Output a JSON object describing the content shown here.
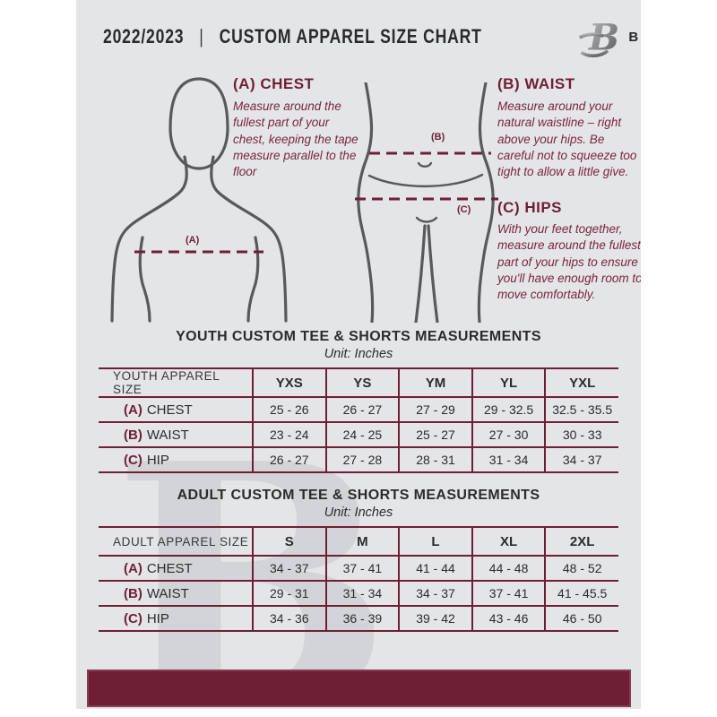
{
  "header": {
    "title_year": "2022/2023",
    "title_divider": "|",
    "title_main": "CUSTOM APPAREL SIZE CHART",
    "brand": "BREAKAWAY",
    "logo_letter": "B"
  },
  "instructions": {
    "chest": {
      "heading": "(A) CHEST",
      "text": "Measure around the fullest part of your chest, keeping the tape measure parallel to the floor"
    },
    "waist": {
      "heading": "(B) WAIST",
      "text": "Measure around your natural waistline – right above your hips. Be careful not to squeeze too tight to allow a little give."
    },
    "hips": {
      "heading": "(C) HIPS",
      "text": "With your feet together, measure around the fullest part of your hips to ensure you'll have enough room to move comfortably."
    }
  },
  "figure_labels": {
    "chest": "(A)",
    "waist": "(B)",
    "hips": "(C)"
  },
  "youth": {
    "title": "YOUTH CUSTOM TEE & SHORTS MEASUREMENTS",
    "unit": "Unit: Inches",
    "size_label": "YOUTH APPAREL SIZE",
    "sizes": [
      "YXS",
      "YS",
      "YM",
      "YL",
      "YXL"
    ],
    "rows": [
      {
        "prefix": "(A)",
        "label": "CHEST",
        "values": [
          "25 - 26",
          "26 - 27",
          "27 - 29",
          "29 - 32.5",
          "32.5 - 35.5"
        ]
      },
      {
        "prefix": "(B)",
        "label": "WAIST",
        "values": [
          "23 - 24",
          "24 - 25",
          "25 - 27",
          "27 - 30",
          "30 - 33"
        ]
      },
      {
        "prefix": "(C)",
        "label": "HIP",
        "values": [
          "26 - 27",
          "27 - 28",
          "28 - 31",
          "31 - 34",
          "34 - 37"
        ]
      }
    ]
  },
  "adult": {
    "title": "ADULT CUSTOM TEE & SHORTS MEASUREMENTS",
    "unit": "Unit: Inches",
    "size_label": "ADULT APPAREL SIZE",
    "sizes": [
      "S",
      "M",
      "L",
      "XL",
      "2XL"
    ],
    "rows": [
      {
        "prefix": "(A)",
        "label": "CHEST",
        "values": [
          "34 - 37",
          "37 - 41",
          "41 - 44",
          "44 - 48",
          "48 - 52"
        ]
      },
      {
        "prefix": "(B)",
        "label": "WAIST",
        "values": [
          "29 - 31",
          "31 - 34",
          "34 - 37",
          "37 - 41",
          "41 - 45.5"
        ]
      },
      {
        "prefix": "(C)",
        "label": "HIP",
        "values": [
          "34 - 36",
          "36 - 39",
          "39 - 42",
          "43 - 46",
          "46 - 50"
        ]
      }
    ]
  },
  "watermark_letter": "B",
  "colors": {
    "maroon": "#6f1f35",
    "panel_bg": "#e4e5e7",
    "text_dark": "#2e2e30",
    "silhouette": "#58595b"
  }
}
